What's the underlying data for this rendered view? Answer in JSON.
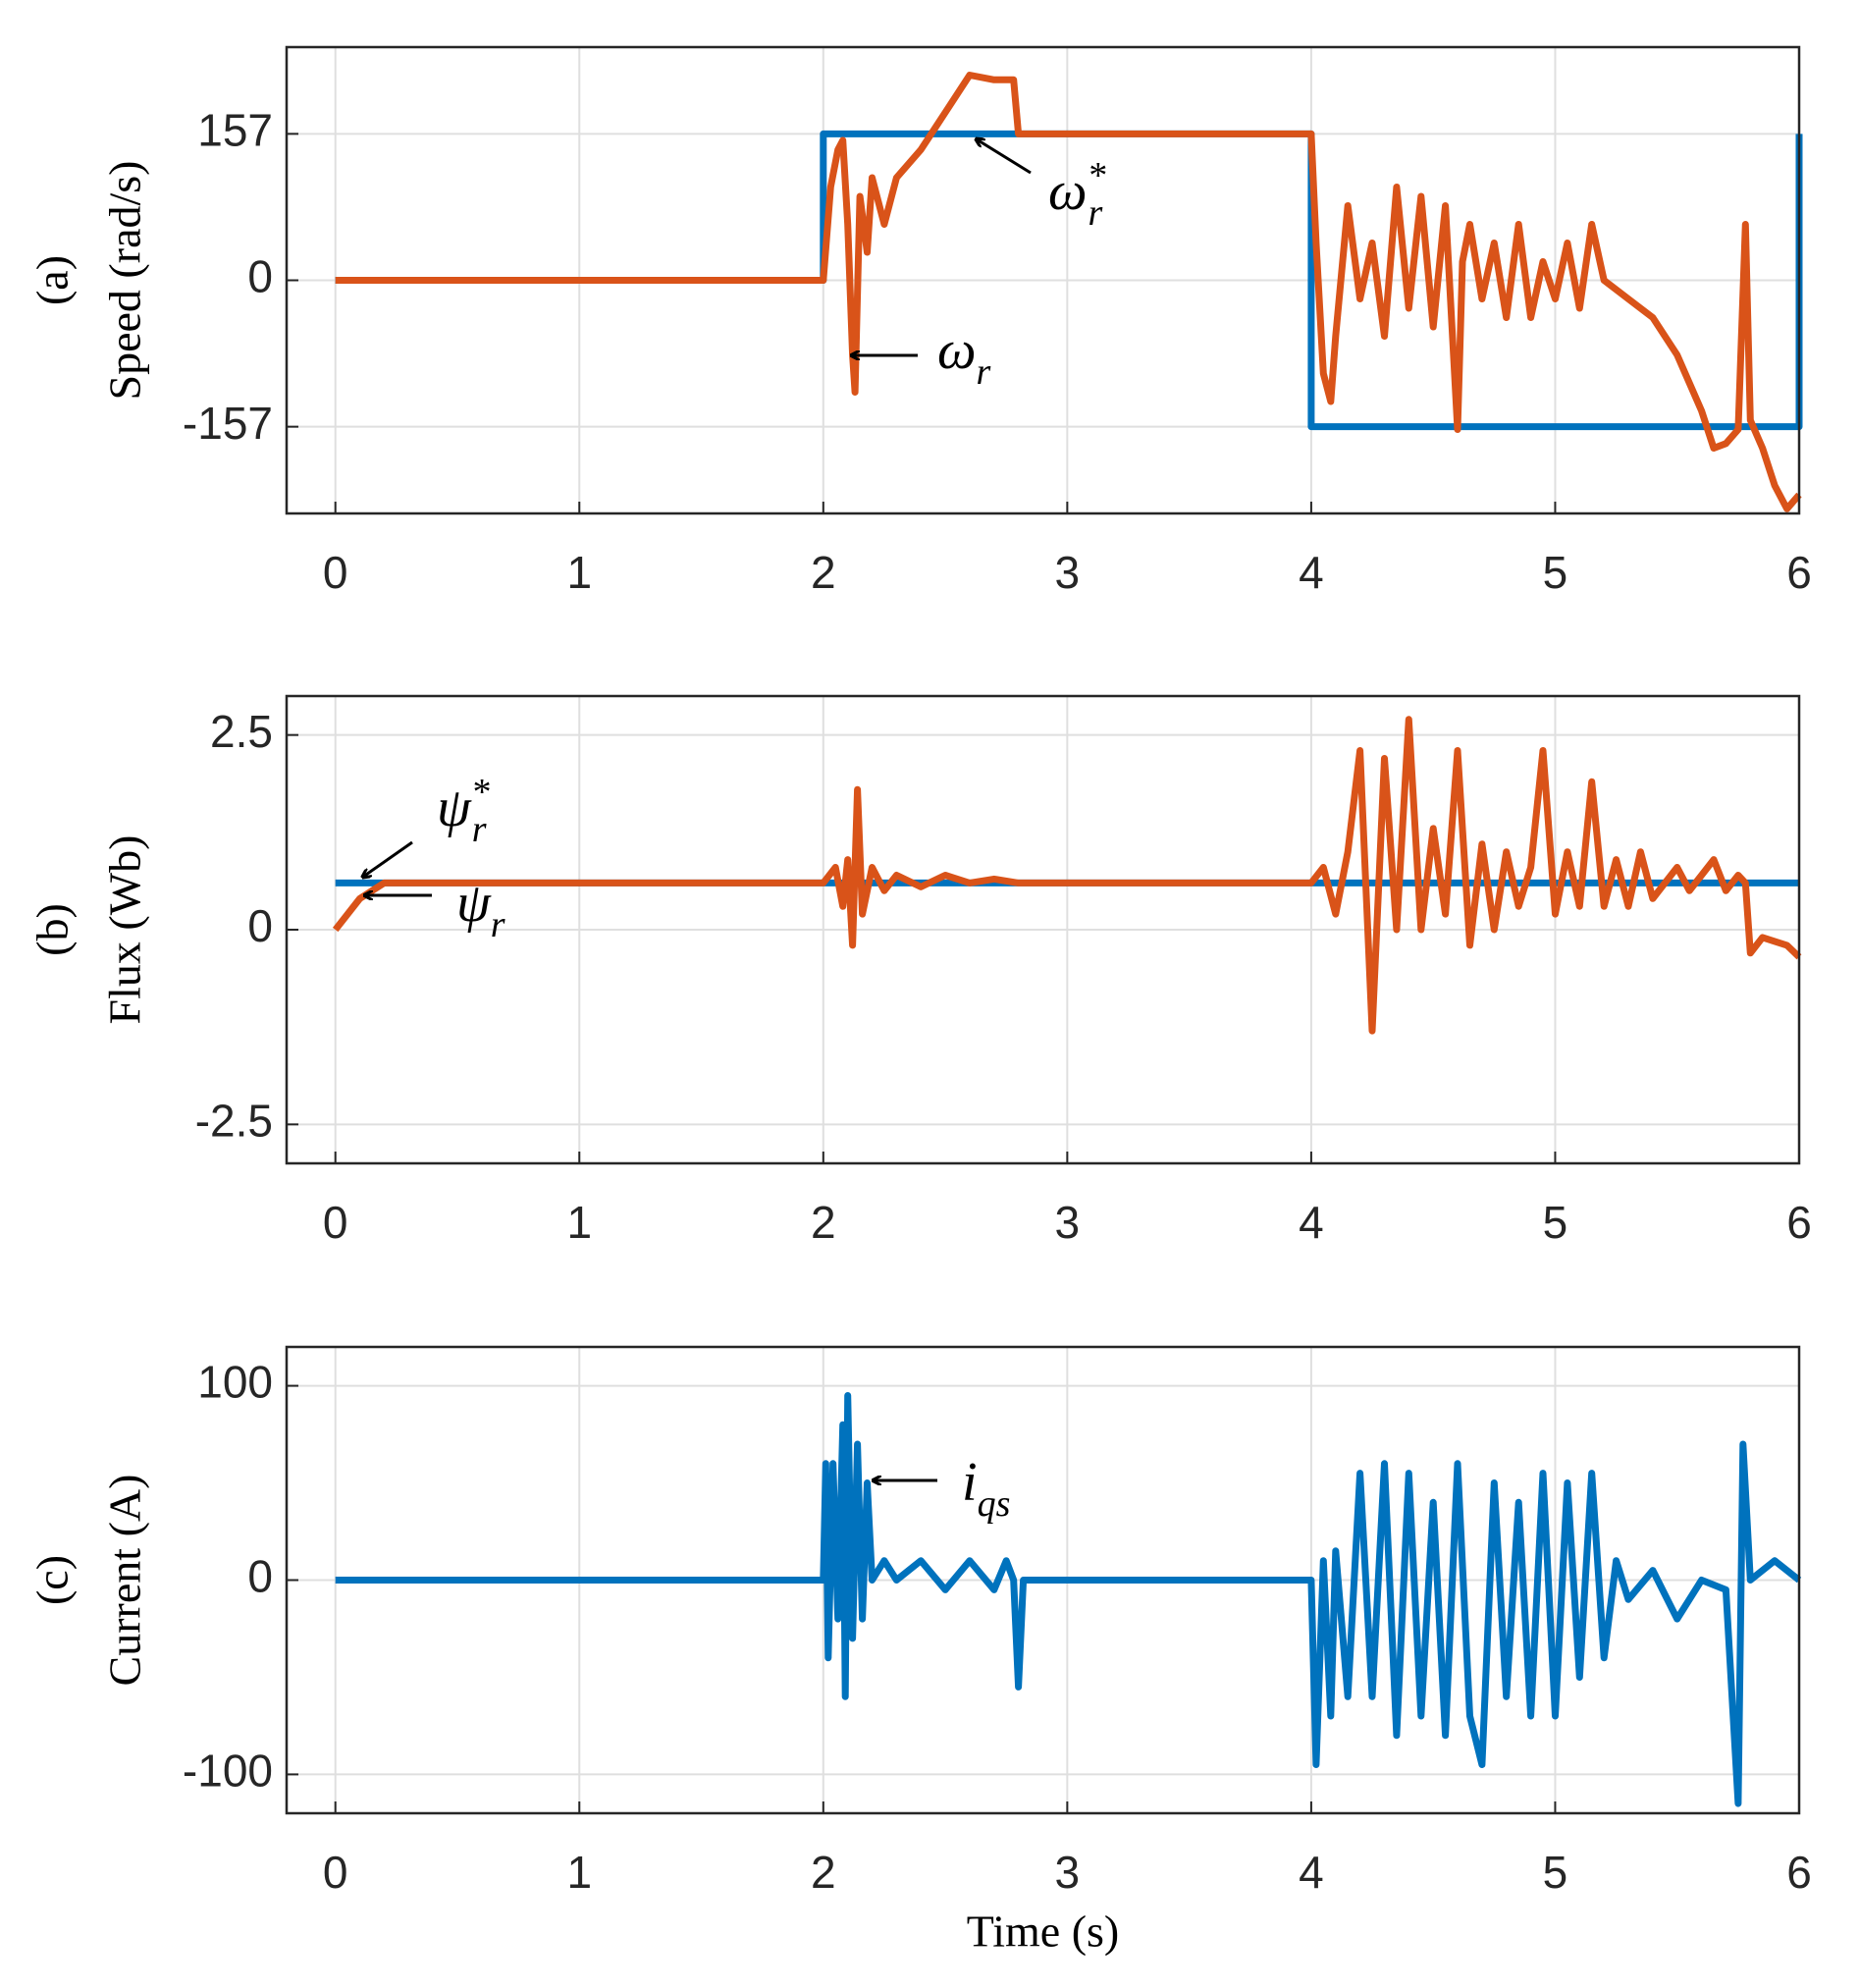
{
  "chart_data": [
    {
      "type": "line",
      "panel": "(a)",
      "ylabel": "Speed (rad/s)",
      "xlim": [
        -0.2,
        6
      ],
      "xticks": [
        0,
        1,
        2,
        3,
        4,
        5,
        6
      ],
      "ylim": [
        -250,
        250
      ],
      "yticks": [
        -157,
        0,
        157
      ],
      "grid": true,
      "series": [
        {
          "color": "#0072BD",
          "x": [
            0,
            2,
            2,
            4,
            4,
            6,
            6
          ],
          "values": [
            0,
            0,
            157,
            157,
            -157,
            -157,
            157
          ]
        },
        {
          "color": "#D95319",
          "x": [
            0,
            2,
            2.03,
            2.06,
            2.08,
            2.1,
            2.12,
            2.13,
            2.15,
            2.18,
            2.2,
            2.25,
            2.3,
            2.4,
            2.5,
            2.6,
            2.7,
            2.78,
            2.8,
            4,
            4.02,
            4.05,
            4.08,
            4.1,
            4.15,
            4.2,
            4.25,
            4.3,
            4.35,
            4.4,
            4.45,
            4.5,
            4.55,
            4.6,
            4.62,
            4.65,
            4.7,
            4.75,
            4.8,
            4.85,
            4.9,
            4.95,
            5,
            5.05,
            5.1,
            5.15,
            5.2,
            5.3,
            5.4,
            5.5,
            5.6,
            5.65,
            5.7,
            5.75,
            5.78,
            5.8,
            5.85,
            5.9,
            5.95,
            6
          ],
          "values": [
            0,
            0,
            100,
            140,
            150,
            60,
            -80,
            -120,
            90,
            30,
            110,
            60,
            110,
            140,
            180,
            220,
            215,
            215,
            157,
            157,
            40,
            -100,
            -130,
            -60,
            80,
            -20,
            40,
            -60,
            100,
            -30,
            90,
            -50,
            80,
            -160,
            20,
            60,
            -20,
            40,
            -40,
            60,
            -40,
            20,
            -20,
            40,
            -30,
            60,
            0,
            -20,
            -40,
            -80,
            -140,
            -180,
            -175,
            -160,
            60,
            -150,
            -180,
            -220,
            -245,
            -230
          ]
        }
      ],
      "annotations": [
        {
          "text": "ω",
          "sub": "r",
          "sup": "*"
        },
        {
          "text": "ω",
          "sub": "r"
        }
      ]
    },
    {
      "type": "line",
      "panel": "(b)",
      "ylabel": "Flux (Wb)",
      "xlim": [
        -0.2,
        6
      ],
      "xticks": [
        0,
        1,
        2,
        3,
        4,
        5,
        6
      ],
      "ylim": [
        -3,
        3
      ],
      "yticks": [
        -2.5,
        0,
        2.5
      ],
      "grid": true,
      "series": [
        {
          "color": "#0072BD",
          "x": [
            0,
            6
          ],
          "values": [
            0.6,
            0.6
          ]
        },
        {
          "color": "#D95319",
          "x": [
            0,
            0.1,
            0.2,
            2,
            2.05,
            2.08,
            2.1,
            2.12,
            2.14,
            2.16,
            2.2,
            2.25,
            2.3,
            2.4,
            2.5,
            2.6,
            2.7,
            2.8,
            4,
            4.05,
            4.1,
            4.15,
            4.2,
            4.25,
            4.3,
            4.35,
            4.4,
            4.45,
            4.5,
            4.55,
            4.6,
            4.65,
            4.7,
            4.75,
            4.8,
            4.85,
            4.9,
            4.95,
            5,
            5.05,
            5.1,
            5.15,
            5.2,
            5.25,
            5.3,
            5.35,
            5.4,
            5.45,
            5.5,
            5.55,
            5.6,
            5.65,
            5.7,
            5.75,
            5.78,
            5.8,
            5.85,
            5.9,
            5.95,
            6
          ],
          "values": [
            0,
            0.4,
            0.6,
            0.6,
            0.8,
            0.3,
            0.9,
            -0.2,
            1.8,
            0.2,
            0.8,
            0.5,
            0.7,
            0.55,
            0.7,
            0.6,
            0.65,
            0.6,
            0.6,
            0.8,
            0.2,
            1,
            2.3,
            -1.3,
            2.2,
            0,
            2.7,
            0,
            1.3,
            0.2,
            2.3,
            -0.2,
            1.1,
            0,
            1,
            0.3,
            0.8,
            2.3,
            0.2,
            1,
            0.3,
            1.9,
            0.3,
            0.9,
            0.3,
            1,
            0.4,
            0.6,
            0.8,
            0.5,
            0.7,
            0.9,
            0.5,
            0.7,
            0.6,
            -0.3,
            -0.1,
            -0.15,
            -0.2,
            -0.35
          ]
        }
      ],
      "annotations": [
        {
          "text": "ψ",
          "sub": "r",
          "sup": "*"
        },
        {
          "text": "ψ",
          "sub": "r"
        }
      ]
    },
    {
      "type": "line",
      "panel": "(c)",
      "ylabel": "Current (A)",
      "xlabel": "Time (s)",
      "xlim": [
        -0.2,
        6
      ],
      "xticks": [
        0,
        1,
        2,
        3,
        4,
        5,
        6
      ],
      "ylim": [
        -120,
        120
      ],
      "yticks": [
        -100,
        0,
        100
      ],
      "grid": true,
      "series": [
        {
          "color": "#0072BD",
          "x": [
            0,
            2,
            2.01,
            2.02,
            2.04,
            2.06,
            2.08,
            2.09,
            2.1,
            2.12,
            2.14,
            2.16,
            2.18,
            2.2,
            2.25,
            2.3,
            2.4,
            2.5,
            2.6,
            2.7,
            2.75,
            2.78,
            2.8,
            2.82,
            4,
            4.02,
            4.05,
            4.08,
            4.1,
            4.15,
            4.2,
            4.25,
            4.3,
            4.35,
            4.4,
            4.45,
            4.5,
            4.55,
            4.6,
            4.65,
            4.7,
            4.75,
            4.8,
            4.85,
            4.9,
            4.95,
            5,
            5.05,
            5.1,
            5.15,
            5.2,
            5.25,
            5.3,
            5.4,
            5.5,
            5.6,
            5.7,
            5.75,
            5.77,
            5.8,
            5.9,
            6
          ],
          "values": [
            0,
            0,
            60,
            -40,
            60,
            -20,
            80,
            -60,
            95,
            -30,
            70,
            -20,
            50,
            0,
            10,
            0,
            10,
            -5,
            10,
            -5,
            10,
            0,
            -55,
            0,
            0,
            -95,
            10,
            -70,
            15,
            -60,
            55,
            -60,
            60,
            -80,
            55,
            -70,
            40,
            -80,
            60,
            -70,
            -95,
            50,
            -60,
            40,
            -70,
            55,
            -70,
            50,
            -50,
            55,
            -40,
            10,
            -10,
            5,
            -20,
            0,
            -5,
            -115,
            70,
            0,
            10,
            0
          ]
        }
      ],
      "annotations": [
        {
          "text": "i",
          "sub": "qs"
        }
      ]
    }
  ]
}
